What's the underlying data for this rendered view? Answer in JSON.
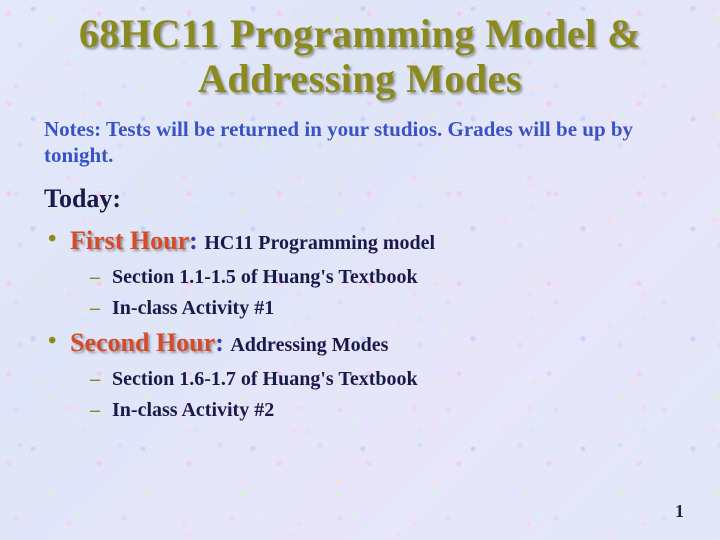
{
  "title": "68HC11 Programming Model & Addressing Modes",
  "notes": "Notes: Tests will be returned in your studios. Grades will be up by tonight.",
  "today_label": "Today:",
  "hours": [
    {
      "label": "First Hour",
      "topic": "HC11 Programming model",
      "subs": [
        "Section 1.1-1.5 of Huang's Textbook",
        "In-class Activity #1"
      ]
    },
    {
      "label": "Second Hour",
      "topic": "Addressing Modes",
      "subs": [
        "Section 1.6-1.7 of Huang's Textbook",
        "In-class Activity #2"
      ]
    }
  ],
  "page_number": "1",
  "colors": {
    "title": "#8a8a1f",
    "notes": "#3a53c4",
    "today": "#1a1a4a",
    "hour_label": "#d64a2a",
    "hour_colon": "#3a3ab0",
    "hour_topic": "#1a1a4a",
    "bullet": "#8a8a1f",
    "sub_text": "#1a1a4a",
    "sub_dash": "#8a8a1f",
    "page_num": "#222244"
  }
}
